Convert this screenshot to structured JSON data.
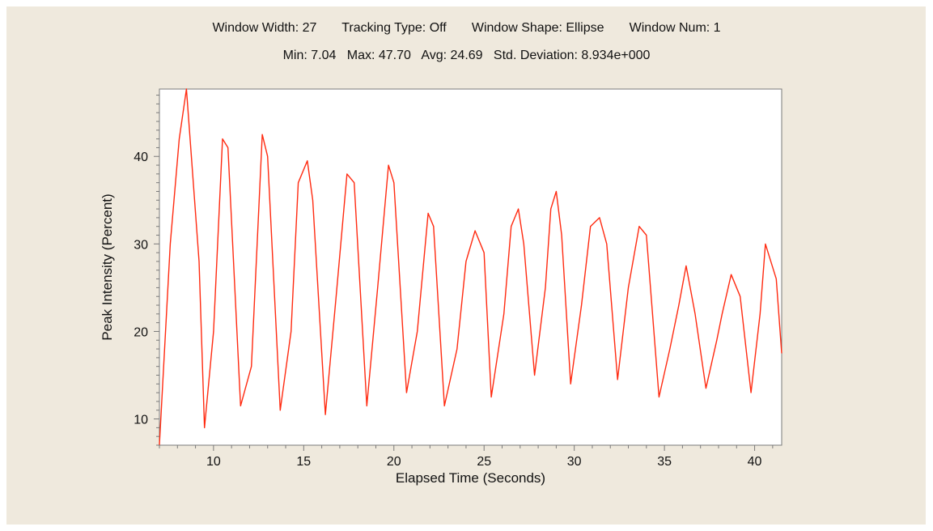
{
  "header": {
    "window_width": "Window Width: 27",
    "tracking_type": "Tracking Type: Off",
    "window_shape": "Window Shape: Ellipse",
    "window_num": "Window Num: 1",
    "min": "Min: 7.04",
    "max": "Max: 47.70",
    "avg": "Avg: 24.69",
    "std": "Std. Deviation: 8.934e+000"
  },
  "colors": {
    "background": "#efe9dd",
    "plot_bg": "#ffffff",
    "line": "#ff2a10",
    "axis": "#7a7a7a"
  },
  "chart_data": {
    "type": "line",
    "title": "",
    "xlabel": "Elapsed Time (Seconds)",
    "ylabel": "Peak Intensity (Percent)",
    "xlim": [
      7.0,
      41.5
    ],
    "ylim": [
      7.0,
      47.7
    ],
    "xticks": [
      10,
      15,
      20,
      25,
      30,
      35,
      40
    ],
    "yticks": [
      10,
      20,
      30,
      40
    ],
    "grid": false,
    "legend": "none",
    "series": [
      {
        "x": [
          7.0,
          7.6,
          8.1,
          8.5,
          9.2,
          9.5,
          10.0,
          10.5,
          10.8,
          11.5,
          12.1,
          12.7,
          13.0,
          13.7,
          14.3,
          14.7,
          15.2,
          15.5,
          16.2,
          16.8,
          17.4,
          17.8,
          18.5,
          19.1,
          19.7,
          20.0,
          20.7,
          21.3,
          21.9,
          22.2,
          22.8,
          23.5,
          24.0,
          24.5,
          25.0,
          25.4,
          26.1,
          26.5,
          26.9,
          27.2,
          27.8,
          28.4,
          28.7,
          29.0,
          29.3,
          29.8,
          30.4,
          30.9,
          31.4,
          31.8,
          32.4,
          33.0,
          33.6,
          34.0,
          34.7,
          35.3,
          35.8,
          36.2,
          36.7,
          37.3,
          37.9,
          38.2,
          38.7,
          39.2,
          39.8,
          40.3,
          40.6,
          41.2,
          41.5
        ],
        "values": [
          7.04,
          30.0,
          42.0,
          47.7,
          28.0,
          9.0,
          20.0,
          42.0,
          41.0,
          11.5,
          16.0,
          42.5,
          40.0,
          11.0,
          20.0,
          37.0,
          39.5,
          35.0,
          10.5,
          24.0,
          38.0,
          37.0,
          11.5,
          25.0,
          39.0,
          37.0,
          13.0,
          20.0,
          33.5,
          32.0,
          11.5,
          18.0,
          28.0,
          31.5,
          29.0,
          12.5,
          22.0,
          32.0,
          34.0,
          30.0,
          15.0,
          25.0,
          34.0,
          36.0,
          31.0,
          14.0,
          23.0,
          32.0,
          33.0,
          30.0,
          14.5,
          25.0,
          32.0,
          31.0,
          12.5,
          18.0,
          23.0,
          27.5,
          22.0,
          13.5,
          19.0,
          22.0,
          26.5,
          24.0,
          13.0,
          22.0,
          30.0,
          26.0,
          17.5
        ]
      }
    ]
  }
}
